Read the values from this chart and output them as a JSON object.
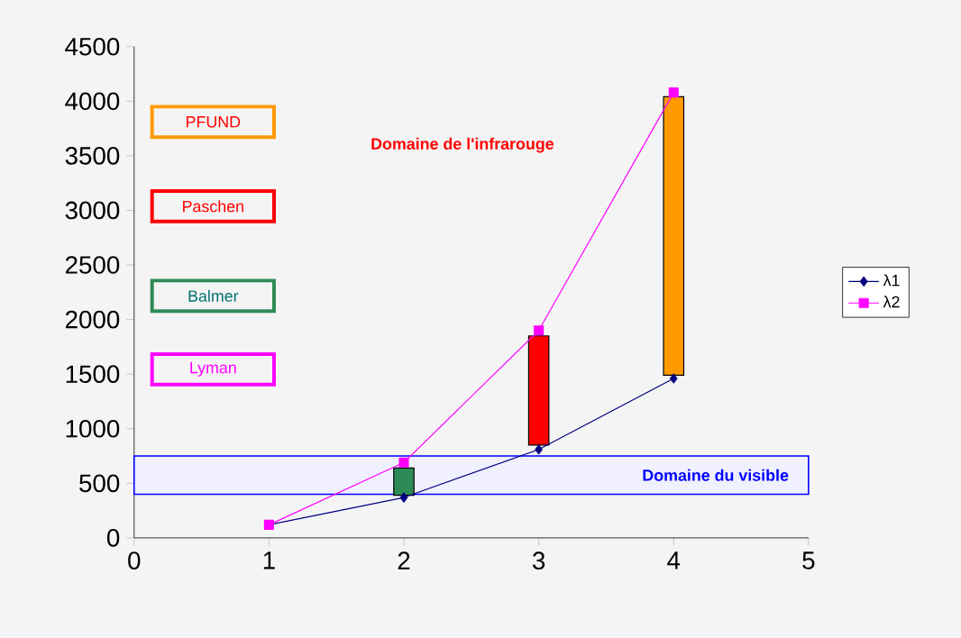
{
  "chart_data": {
    "type": "line",
    "xlim": [
      0,
      5
    ],
    "ylim": [
      0,
      4500
    ],
    "xticks": [
      0,
      1,
      2,
      3,
      4,
      5
    ],
    "yticks": [
      0,
      500,
      1000,
      1500,
      2000,
      2500,
      3000,
      3500,
      4000,
      4500
    ],
    "grid": false,
    "legend": "right",
    "series": [
      {
        "type": "bar",
        "x": [
          2,
          3,
          4
        ],
        "base": [
          390,
          850,
          1490
        ],
        "values": [
          250,
          1000,
          2550
        ],
        "colors": [
          "#2e8b57",
          "#ff0000",
          "#ff9900"
        ]
      },
      {
        "name": "λ1",
        "color": "#000080",
        "marker": "diamond",
        "x": [
          1,
          2,
          3,
          4
        ],
        "values": [
          120,
          370,
          810,
          1460
        ]
      },
      {
        "name": "λ2",
        "color": "#ff00ff",
        "marker": "square",
        "x": [
          1,
          2,
          3,
          4
        ],
        "values": [
          120,
          690,
          1900,
          4080
        ]
      }
    ],
    "bands": [
      {
        "axis": "y",
        "from": 400,
        "to": 750,
        "label": "Domaine du visible",
        "color": "#0000ff"
      }
    ],
    "annotations": [
      "PFUND",
      "Paschen",
      "Balmer",
      "Lyman",
      "Domaine de l'infrarouge"
    ]
  }
}
